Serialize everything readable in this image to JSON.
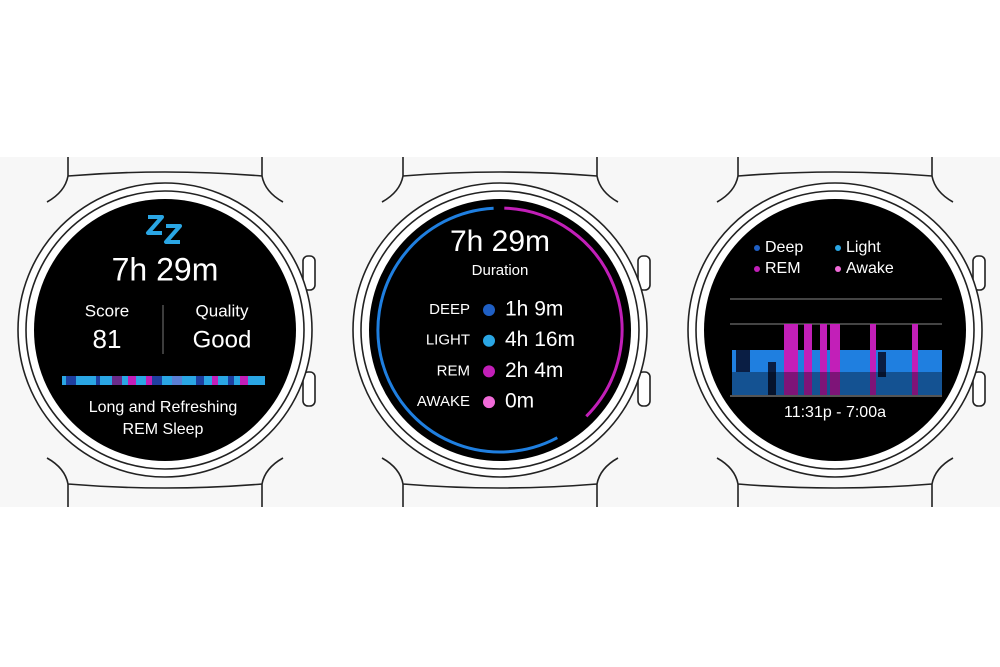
{
  "sleep_summary": {
    "duration": "7h 29m",
    "score_label": "Score",
    "score": "81",
    "quality_label": "Quality",
    "quality": "Good",
    "message_line1": "Long and Refreshing",
    "message_line2": "REM Sleep"
  },
  "sleep_duration": {
    "duration": "7h 29m",
    "label": "Duration",
    "stages": [
      {
        "name": "DEEP",
        "value": "1h 9m",
        "color": "#1f5fc4"
      },
      {
        "name": "LIGHT",
        "value": "4h 16m",
        "color": "#2aa6e4"
      },
      {
        "name": "REM",
        "value": "2h 4m",
        "color": "#c21fb8"
      },
      {
        "name": "AWAKE",
        "value": "0m",
        "color": "#f06ad8"
      }
    ]
  },
  "sleep_timeline": {
    "legend": [
      {
        "name": "Deep",
        "color": "#1f5fc4"
      },
      {
        "name": "Light",
        "color": "#2aa6e4"
      },
      {
        "name": "REM",
        "color": "#c21fb8"
      },
      {
        "name": "Awake",
        "color": "#f06ad8"
      }
    ],
    "time_range": "11:31p - 7:00a"
  }
}
